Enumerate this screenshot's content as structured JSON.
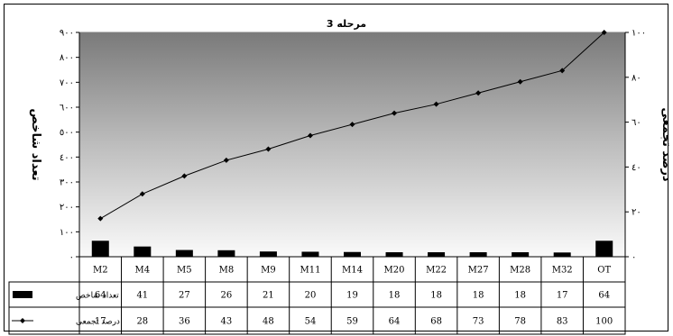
{
  "chart_data": {
    "type": "bar",
    "title": "مرحله 3",
    "categories": [
      "M2",
      "M4",
      "M5",
      "M8",
      "M9",
      "M11",
      "M14",
      "M20",
      "M22",
      "M27",
      "M28",
      "M32",
      "OT"
    ],
    "series": [
      {
        "name": "تعداد شاخص",
        "kind": "bar",
        "axis": "left",
        "values": [
          64,
          41,
          27,
          26,
          21,
          20,
          19,
          18,
          18,
          18,
          18,
          17,
          64
        ],
        "labels": [
          "64",
          "41",
          "27",
          "26",
          "21",
          "20",
          "19",
          "18",
          "18",
          "18",
          "18",
          "17",
          "64"
        ],
        "color": "#000000"
      },
      {
        "name": "درصد تجمعی",
        "kind": "line",
        "axis": "right",
        "values": [
          17,
          28,
          36,
          43,
          48,
          54,
          59,
          64,
          68,
          73,
          78,
          83,
          100
        ],
        "labels": [
          "17",
          "28",
          "36",
          "43",
          "48",
          "54",
          "59",
          "64",
          "68",
          "73",
          "78",
          "83",
          "100"
        ],
        "color": "#000000"
      }
    ],
    "y_left": {
      "label": "تعداد شاخص",
      "min": 0,
      "max": 900,
      "ticks": [
        "٠",
        "١٠٠",
        "٢٠٠",
        "٣٠٠",
        "٤٠٠",
        "٥٠٠",
        "٦٠٠",
        "٧٠٠",
        "٨٠٠",
        "٩٠٠"
      ]
    },
    "y_right": {
      "label": "درصد تجمعی",
      "min": 0,
      "max": 100,
      "ticks": [
        "٠",
        "٢٠",
        "٤٠",
        "٦٠",
        "٨٠",
        "١٠٠"
      ]
    },
    "data_table": true,
    "grid": false,
    "plot_background": "gradient-gray"
  }
}
